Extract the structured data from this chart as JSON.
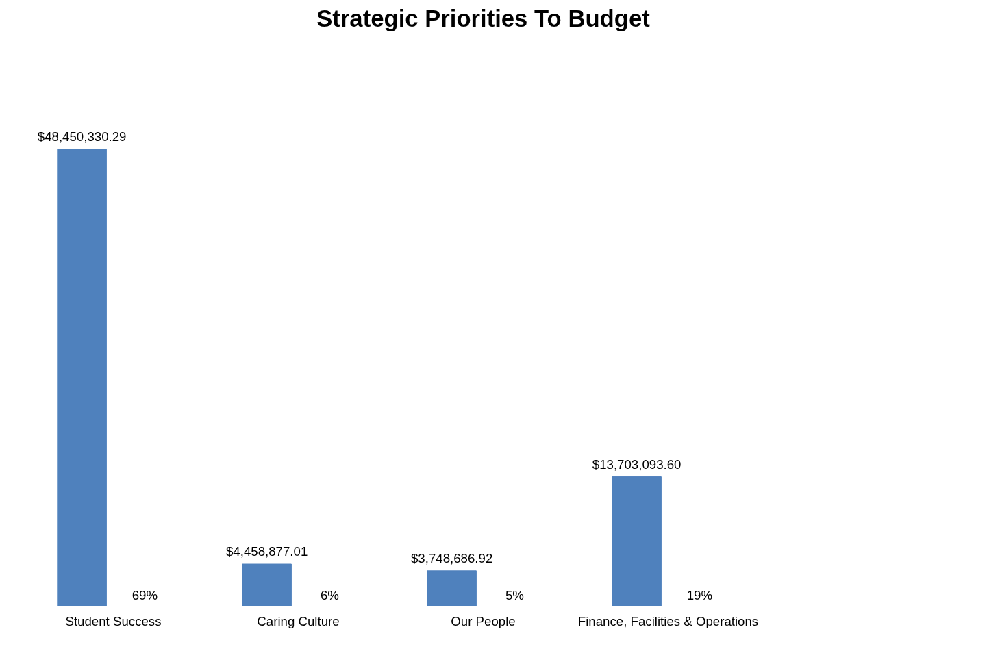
{
  "chart_data": {
    "type": "bar",
    "title": "Strategic Priorities To Budget",
    "categories": [
      "Student Success",
      "Caring Culture",
      "Our People",
      "Finance, Facilities & Operations",
      null
    ],
    "series": [
      {
        "color": "#4f81bd",
        "values": [
          48450330.29,
          4458877.01,
          3748686.92,
          13703093.6,
          null
        ],
        "value_labels": [
          "$48,450,330.29",
          "$4,458,877.01",
          "$3,748,686.92",
          "$13,703,093.60",
          null
        ]
      }
    ],
    "annotations": [
      "69%",
      "6%",
      "5%",
      "19%"
    ],
    "tick_labels": "x",
    "grid": false
  }
}
